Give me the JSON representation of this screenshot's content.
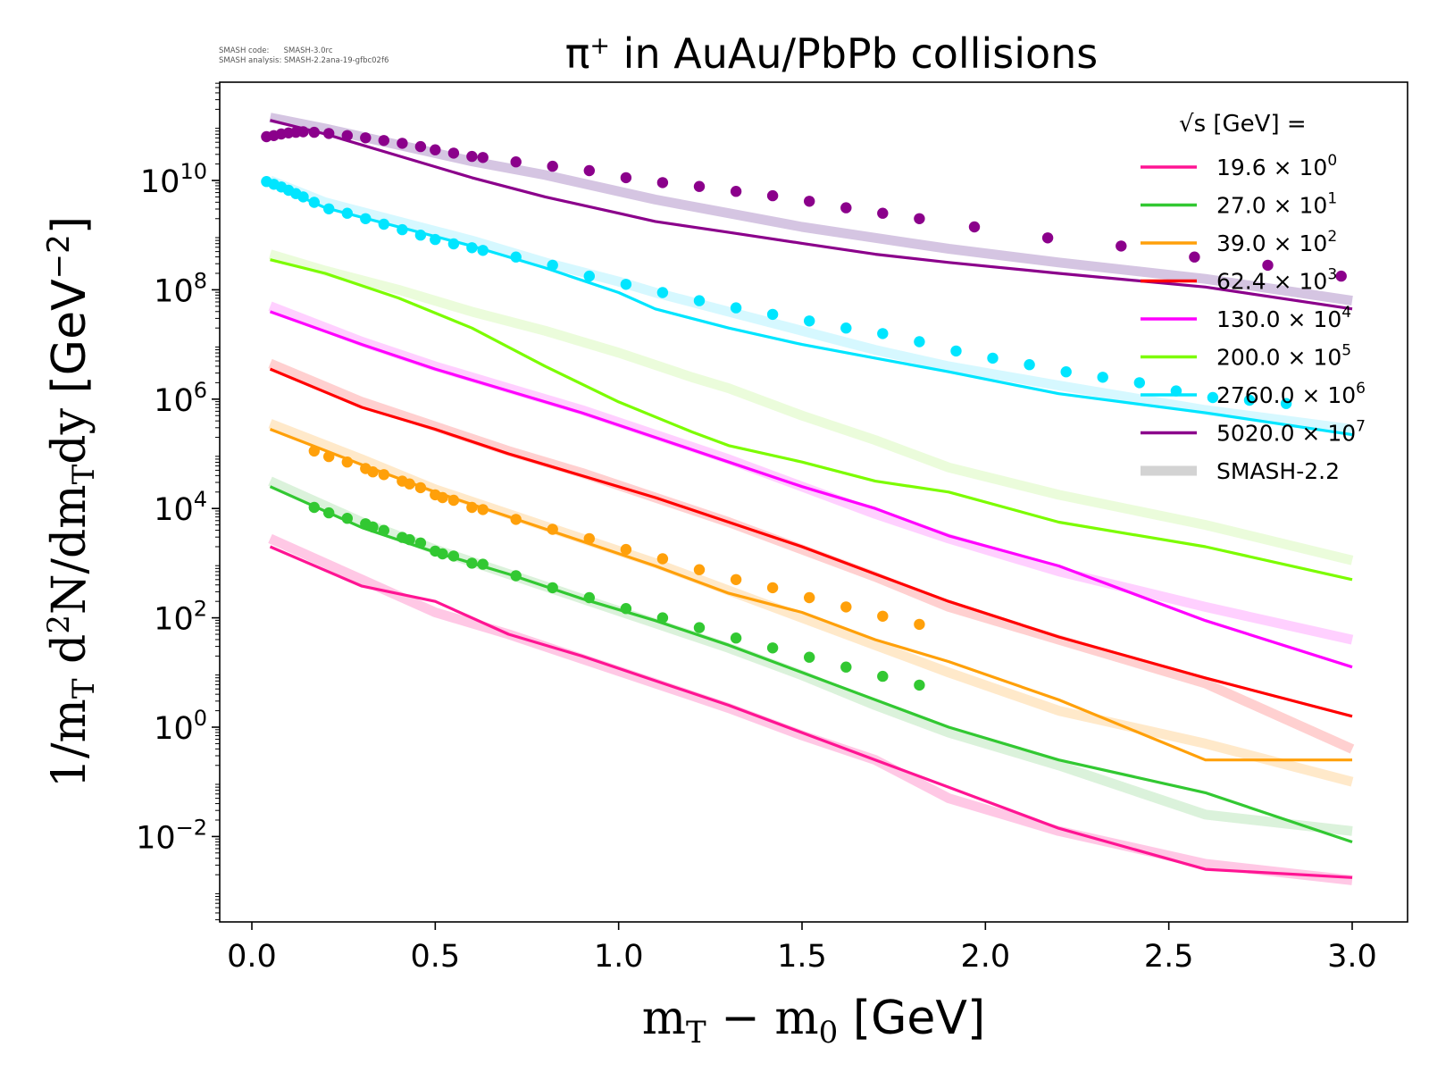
{
  "stamp": {
    "line1": "SMASH code:      SMASH-3.0rc",
    "line2": "SMASH analysis: SMASH-2.2ana-19-gfbc02f6"
  },
  "chart_data": {
    "type": "line",
    "title": "π⁺ in AuAu/PbPb collisions",
    "title_main": "π",
    "title_sup": "+",
    "title_rest": " in AuAu/PbPb collisions",
    "xlabel": "m_T − m_0 [GeV]",
    "ylabel": "1/m_T d²N/dm_Tdy [GeV⁻²]",
    "xlim": [
      -0.1,
      3.15
    ],
    "y_scale": "log",
    "ylog_range": [
      -3.6,
      11.8
    ],
    "x_ticks": [
      0.0,
      0.5,
      1.0,
      1.5,
      2.0,
      2.5,
      3.0
    ],
    "x_tick_labels": [
      "0.0",
      "0.5",
      "1.0",
      "1.5",
      "2.0",
      "2.5",
      "3.0"
    ],
    "y_ticks_log": [
      -2,
      0,
      2,
      4,
      6,
      8,
      10
    ],
    "y_tick_labels": [
      {
        "base": "10",
        "exp": "−2"
      },
      {
        "base": "10",
        "exp": "0"
      },
      {
        "base": "10",
        "exp": "2"
      },
      {
        "base": "10",
        "exp": "4"
      },
      {
        "base": "10",
        "exp": "6"
      },
      {
        "base": "10",
        "exp": "8"
      },
      {
        "base": "10",
        "exp": "10"
      }
    ],
    "legend": {
      "title": "√s  [GeV] =",
      "placement": "top-right",
      "entries": [
        {
          "base": "19.6 × 10",
          "exp": "0",
          "color": "#ff1493"
        },
        {
          "base": "27.0 × 10",
          "exp": "1",
          "color": "#32c832"
        },
        {
          "base": "39.0 × 10",
          "exp": "2",
          "color": "#ffa00a"
        },
        {
          "base": "62.4 × 10",
          "exp": "3",
          "color": "#ff0000"
        },
        {
          "base": "130.0 × 10",
          "exp": "4",
          "color": "#ff00ff"
        },
        {
          "base": "200.0 × 10",
          "exp": "5",
          "color": "#7cfc00"
        },
        {
          "base": "2760.0 × 10",
          "exp": "6",
          "color": "#00e5ff"
        },
        {
          "base": "5020.0 × 10",
          "exp": "7",
          "color": "#8b008b"
        }
      ],
      "band_label": "SMASH-2.2",
      "band_color": "#d3d3d3"
    },
    "series": [
      {
        "color": "#ff1493",
        "band_color": "#ffb6dc",
        "line_x": [
          0.05,
          0.3,
          0.5,
          0.7,
          0.9,
          1.1,
          1.3,
          1.5,
          1.7,
          1.9,
          2.2,
          2.6,
          3.0
        ],
        "line_y": [
          3.3,
          2.58,
          2.3,
          1.7,
          1.3,
          0.85,
          0.4,
          -0.1,
          -0.6,
          -1.1,
          -1.85,
          -2.6,
          -2.75
        ],
        "band_y": [
          3.45,
          2.7,
          2.1,
          1.7,
          1.25,
          0.8,
          0.35,
          -0.15,
          -0.6,
          -1.3,
          -1.9,
          -2.5,
          -2.8
        ],
        "points_x": [],
        "points_y": []
      },
      {
        "color": "#32c832",
        "band_color": "#cfeecf",
        "line_x": [
          0.05,
          0.3,
          0.5,
          0.7,
          0.9,
          1.1,
          1.3,
          1.5,
          1.7,
          1.9,
          2.2,
          2.6,
          3.0
        ],
        "line_y": [
          4.4,
          3.65,
          3.2,
          2.8,
          2.35,
          1.95,
          1.5,
          1.0,
          0.5,
          0.0,
          -0.6,
          -1.2,
          -2.1
        ],
        "band_y": [
          4.5,
          3.75,
          3.25,
          2.8,
          2.35,
          1.9,
          1.45,
          0.95,
          0.4,
          -0.1,
          -0.7,
          -1.6,
          -1.9
        ],
        "points_x": [
          0.17,
          0.21,
          0.26,
          0.31,
          0.33,
          0.36,
          0.41,
          0.43,
          0.46,
          0.5,
          0.52,
          0.55,
          0.6,
          0.63,
          0.72,
          0.82,
          0.92,
          1.02,
          1.12,
          1.22,
          1.32,
          1.42,
          1.52,
          1.62,
          1.72,
          1.82
        ],
        "points_y": [
          4.02,
          3.92,
          3.82,
          3.72,
          3.66,
          3.6,
          3.47,
          3.43,
          3.37,
          3.22,
          3.17,
          3.13,
          3.0,
          2.98,
          2.77,
          2.55,
          2.37,
          2.17,
          2.0,
          1.82,
          1.63,
          1.45,
          1.28,
          1.1,
          0.93,
          0.77
        ],
        "points_color": "#32c832"
      },
      {
        "color": "#ffa00a",
        "band_color": "#ffe2b8",
        "line_x": [
          0.05,
          0.3,
          0.5,
          0.7,
          0.9,
          1.1,
          1.3,
          1.5,
          1.7,
          1.9,
          2.2,
          2.6,
          3.0
        ],
        "line_y": [
          5.45,
          4.8,
          4.3,
          3.85,
          3.4,
          2.95,
          2.45,
          2.1,
          1.6,
          1.2,
          0.5,
          -0.6,
          -0.6
        ],
        "band_y": [
          5.55,
          4.9,
          4.35,
          3.9,
          3.45,
          3.0,
          2.5,
          2.0,
          1.5,
          1.0,
          0.3,
          -0.3,
          -1.0
        ],
        "points_x": [
          0.17,
          0.21,
          0.26,
          0.31,
          0.33,
          0.36,
          0.41,
          0.43,
          0.46,
          0.5,
          0.52,
          0.55,
          0.6,
          0.63,
          0.72,
          0.82,
          0.92,
          1.02,
          1.12,
          1.22,
          1.32,
          1.42,
          1.52,
          1.62,
          1.72,
          1.82
        ],
        "points_y": [
          5.05,
          4.95,
          4.85,
          4.73,
          4.67,
          4.62,
          4.5,
          4.45,
          4.38,
          4.25,
          4.2,
          4.15,
          4.02,
          3.98,
          3.8,
          3.62,
          3.45,
          3.25,
          3.08,
          2.88,
          2.7,
          2.55,
          2.37,
          2.2,
          2.03,
          1.88
        ],
        "points_color": "#ffa00a"
      },
      {
        "color": "#ff0000",
        "band_color": "#ffc0c0",
        "line_x": [
          0.05,
          0.3,
          0.5,
          0.7,
          0.9,
          1.1,
          1.3,
          1.5,
          1.7,
          1.9,
          2.2,
          2.6,
          3.0
        ],
        "line_y": [
          6.55,
          5.85,
          5.45,
          5.0,
          4.6,
          4.2,
          3.75,
          3.3,
          2.8,
          2.3,
          1.65,
          0.9,
          0.2
        ],
        "band_y": [
          6.65,
          5.95,
          5.5,
          5.05,
          4.65,
          4.2,
          3.75,
          3.25,
          2.75,
          2.2,
          1.6,
          0.8,
          -0.4
        ],
        "points_x": [],
        "points_y": []
      },
      {
        "color": "#ff00ff",
        "band_color": "#ffc0ff",
        "line_x": [
          0.05,
          0.3,
          0.5,
          0.7,
          0.9,
          1.1,
          1.3,
          1.5,
          1.7,
          1.9,
          2.2,
          2.6,
          3.0
        ],
        "line_y": [
          7.6,
          7.0,
          6.55,
          6.15,
          5.75,
          5.3,
          4.85,
          4.4,
          4.0,
          3.5,
          2.95,
          1.95,
          1.1
        ],
        "band_y": [
          7.7,
          7.05,
          6.6,
          6.2,
          5.8,
          5.35,
          4.9,
          4.4,
          3.9,
          3.45,
          2.85,
          2.2,
          1.6
        ],
        "points_x": [],
        "points_y": []
      },
      {
        "color": "#7cfc00",
        "band_color": "#e4fbcf",
        "line_x": [
          0.05,
          0.2,
          0.4,
          0.6,
          0.8,
          1.0,
          1.2,
          1.3,
          1.5,
          1.7,
          1.9,
          2.2,
          2.6,
          3.0
        ],
        "line_y": [
          8.55,
          8.3,
          7.85,
          7.3,
          6.6,
          5.95,
          5.4,
          5.15,
          4.85,
          4.5,
          4.3,
          3.75,
          3.3,
          2.7
        ],
        "band_y": [
          8.65,
          8.35,
          8.0,
          7.6,
          7.25,
          6.85,
          6.4,
          6.2,
          5.7,
          5.25,
          4.75,
          4.25,
          3.7,
          3.05
        ],
        "points_x": [],
        "points_y": []
      },
      {
        "color": "#00e5ff",
        "band_color": "#c8f6ff",
        "line_x": [
          0.05,
          0.2,
          0.4,
          0.6,
          0.8,
          1.0,
          1.1,
          1.3,
          1.5,
          1.7,
          1.9,
          2.2,
          2.6,
          3.0
        ],
        "line_y": [
          9.95,
          9.5,
          9.15,
          8.8,
          8.4,
          7.95,
          7.65,
          7.3,
          7.0,
          6.75,
          6.5,
          6.1,
          5.75,
          5.35
        ],
        "band_y": [
          10.0,
          9.6,
          9.25,
          8.9,
          8.5,
          8.15,
          7.95,
          7.6,
          7.25,
          6.9,
          6.6,
          6.25,
          5.8,
          5.45
        ],
        "points_x": [
          0.04,
          0.06,
          0.08,
          0.1,
          0.12,
          0.14,
          0.17,
          0.21,
          0.26,
          0.31,
          0.36,
          0.41,
          0.46,
          0.5,
          0.55,
          0.6,
          0.63,
          0.72,
          0.82,
          0.92,
          1.02,
          1.12,
          1.22,
          1.32,
          1.42,
          1.52,
          1.62,
          1.72,
          1.82,
          1.92,
          2.02,
          2.12,
          2.22,
          2.32,
          2.42,
          2.52,
          2.62,
          2.72,
          2.82
        ],
        "points_y": [
          9.98,
          9.93,
          9.88,
          9.82,
          9.76,
          9.7,
          9.6,
          9.48,
          9.4,
          9.3,
          9.2,
          9.1,
          9.0,
          8.92,
          8.84,
          8.77,
          8.72,
          8.6,
          8.45,
          8.25,
          8.1,
          7.95,
          7.8,
          7.67,
          7.55,
          7.43,
          7.3,
          7.2,
          7.05,
          6.88,
          6.75,
          6.63,
          6.5,
          6.4,
          6.3,
          6.15,
          6.03,
          5.98,
          5.92
        ],
        "points_color": "#00e5ff"
      },
      {
        "color": "#8b008b",
        "band_color": "#c7b1d8",
        "line_x": [
          0.05,
          0.2,
          0.4,
          0.6,
          0.8,
          1.0,
          1.1,
          1.3,
          1.5,
          1.7,
          1.9,
          2.2,
          2.6,
          3.0
        ],
        "line_y": [
          11.1,
          10.85,
          10.45,
          10.05,
          9.7,
          9.4,
          9.25,
          9.05,
          8.85,
          8.65,
          8.5,
          8.3,
          8.05,
          7.65
        ],
        "band_y": [
          11.15,
          10.95,
          10.65,
          10.35,
          10.1,
          9.8,
          9.65,
          9.4,
          9.15,
          8.95,
          8.75,
          8.5,
          8.2,
          7.8
        ],
        "points_x": [
          0.04,
          0.06,
          0.08,
          0.1,
          0.12,
          0.14,
          0.17,
          0.21,
          0.26,
          0.31,
          0.36,
          0.41,
          0.46,
          0.5,
          0.55,
          0.6,
          0.63,
          0.72,
          0.82,
          0.92,
          1.02,
          1.12,
          1.22,
          1.32,
          1.42,
          1.52,
          1.62,
          1.72,
          1.82,
          1.97,
          2.17,
          2.37,
          2.57,
          2.77,
          2.97
        ],
        "points_y": [
          10.8,
          10.82,
          10.85,
          10.87,
          10.88,
          10.89,
          10.88,
          10.86,
          10.82,
          10.78,
          10.73,
          10.68,
          10.62,
          10.56,
          10.5,
          10.44,
          10.42,
          10.34,
          10.26,
          10.18,
          10.05,
          9.96,
          9.89,
          9.8,
          9.72,
          9.62,
          9.5,
          9.4,
          9.3,
          9.15,
          8.95,
          8.8,
          8.6,
          8.45,
          8.25
        ],
        "points_color": "#8b008b"
      }
    ]
  }
}
